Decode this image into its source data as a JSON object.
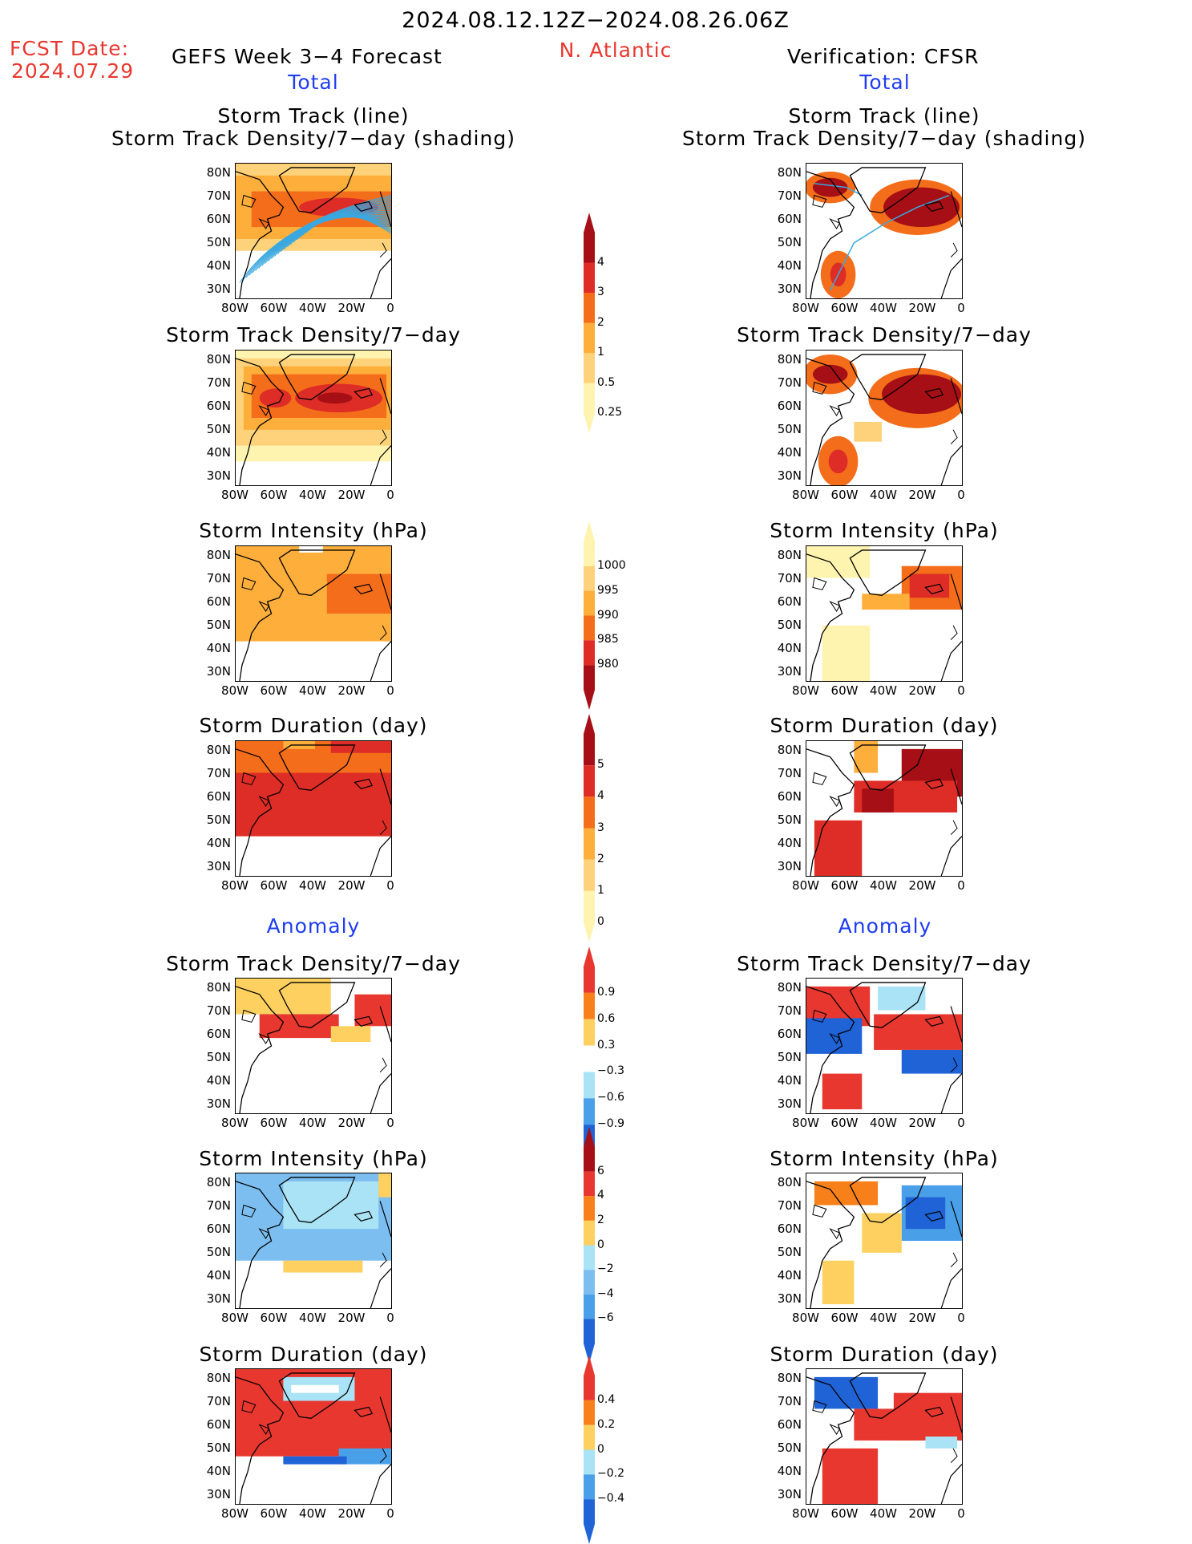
{
  "header": {
    "date_range": "2024.08.12.12Z−2024.08.26.06Z",
    "fcst_label": "FCST Date:",
    "fcst_date": "2024.07.29",
    "forecast_title": "GEFS Week 3−4 Forecast",
    "region": "N. Atlantic",
    "verification": "Verification: CFSR"
  },
  "sections": {
    "total": "Total",
    "anomaly": "Anomaly"
  },
  "axes": {
    "lat_labels": [
      "80N",
      "70N",
      "60N",
      "50N",
      "40N",
      "30N"
    ],
    "lon_labels": [
      "80W",
      "60W",
      "40W",
      "20W",
      "0"
    ]
  },
  "rows": [
    {
      "title_line1": "Storm Track (line)",
      "title_line2": "Storm Track Density/7−day (shading)"
    },
    {
      "title_line1": "Storm Track Density/7−day"
    },
    {
      "title_line1": "Storm Intensity (hPa)"
    },
    {
      "title_line1": "Storm Duration (day)"
    },
    {
      "title_line1": "Storm Track Density/7−day"
    },
    {
      "title_line1": "Storm Intensity (hPa)"
    },
    {
      "title_line1": "Storm Duration (day)"
    }
  ],
  "colorbars": [
    {
      "labels": [
        "4",
        "3",
        "2",
        "1",
        "0.5",
        "0.25"
      ],
      "colors": [
        "#a50f15",
        "#de2d26",
        "#f46d1a",
        "#fdae3b",
        "#fdd27a",
        "#fff3b0"
      ]
    },
    {
      "labels": [
        "1000",
        "995",
        "990",
        "985",
        "980"
      ],
      "colors": [
        "#fff3b0",
        "#fdd27a",
        "#fdae3b",
        "#f46d1a",
        "#de2d26",
        "#a50f15"
      ]
    },
    {
      "labels": [
        "5",
        "4",
        "3",
        "2",
        "1",
        "0"
      ],
      "colors": [
        "#a50f15",
        "#de2d26",
        "#f46d1a",
        "#fdae3b",
        "#fdd27a",
        "#fff3b0"
      ]
    },
    {
      "labels": [
        "0.9",
        "0.6",
        "0.3",
        "−0.3",
        "−0.6",
        "−0.9"
      ],
      "colors": [
        "#e8372f",
        "#f8801a",
        "#fdd060",
        "#ffffff",
        "#a9e3f5",
        "#4aa0e8",
        "#1f63d6"
      ]
    },
    {
      "labels": [
        "6",
        "4",
        "2",
        "0",
        "−2",
        "−4",
        "−6"
      ],
      "colors": [
        "#a50f15",
        "#e8372f",
        "#f8801a",
        "#fdd060",
        "#a9e3f5",
        "#7cbef0",
        "#4aa0e8",
        "#1f63d6"
      ]
    },
    {
      "labels": [
        "0.4",
        "0.2",
        "0",
        "−0.2",
        "−0.4"
      ],
      "colors": [
        "#e8372f",
        "#f8801a",
        "#fdd060",
        "#a9e3f5",
        "#4aa0e8",
        "#1f63d6"
      ]
    }
  ]
}
